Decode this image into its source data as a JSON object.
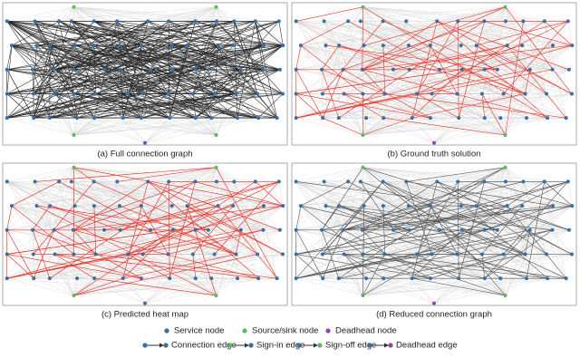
{
  "panels": [
    {
      "caption": "(a) Full connection graph",
      "style": "full"
    },
    {
      "caption": "(b) Ground truth solution",
      "style": "truth"
    },
    {
      "caption": "(c) Predicted heat map",
      "style": "heat"
    },
    {
      "caption": "(d) Reduced connection graph",
      "style": "reduced"
    }
  ],
  "legend": {
    "nodes": [
      "Service node",
      "Source/sink node",
      "Deadhead node"
    ],
    "edges": [
      "Connection edge",
      "Sign-in edge",
      "Sign-off edge",
      "Deadhead edge"
    ]
  }
}
